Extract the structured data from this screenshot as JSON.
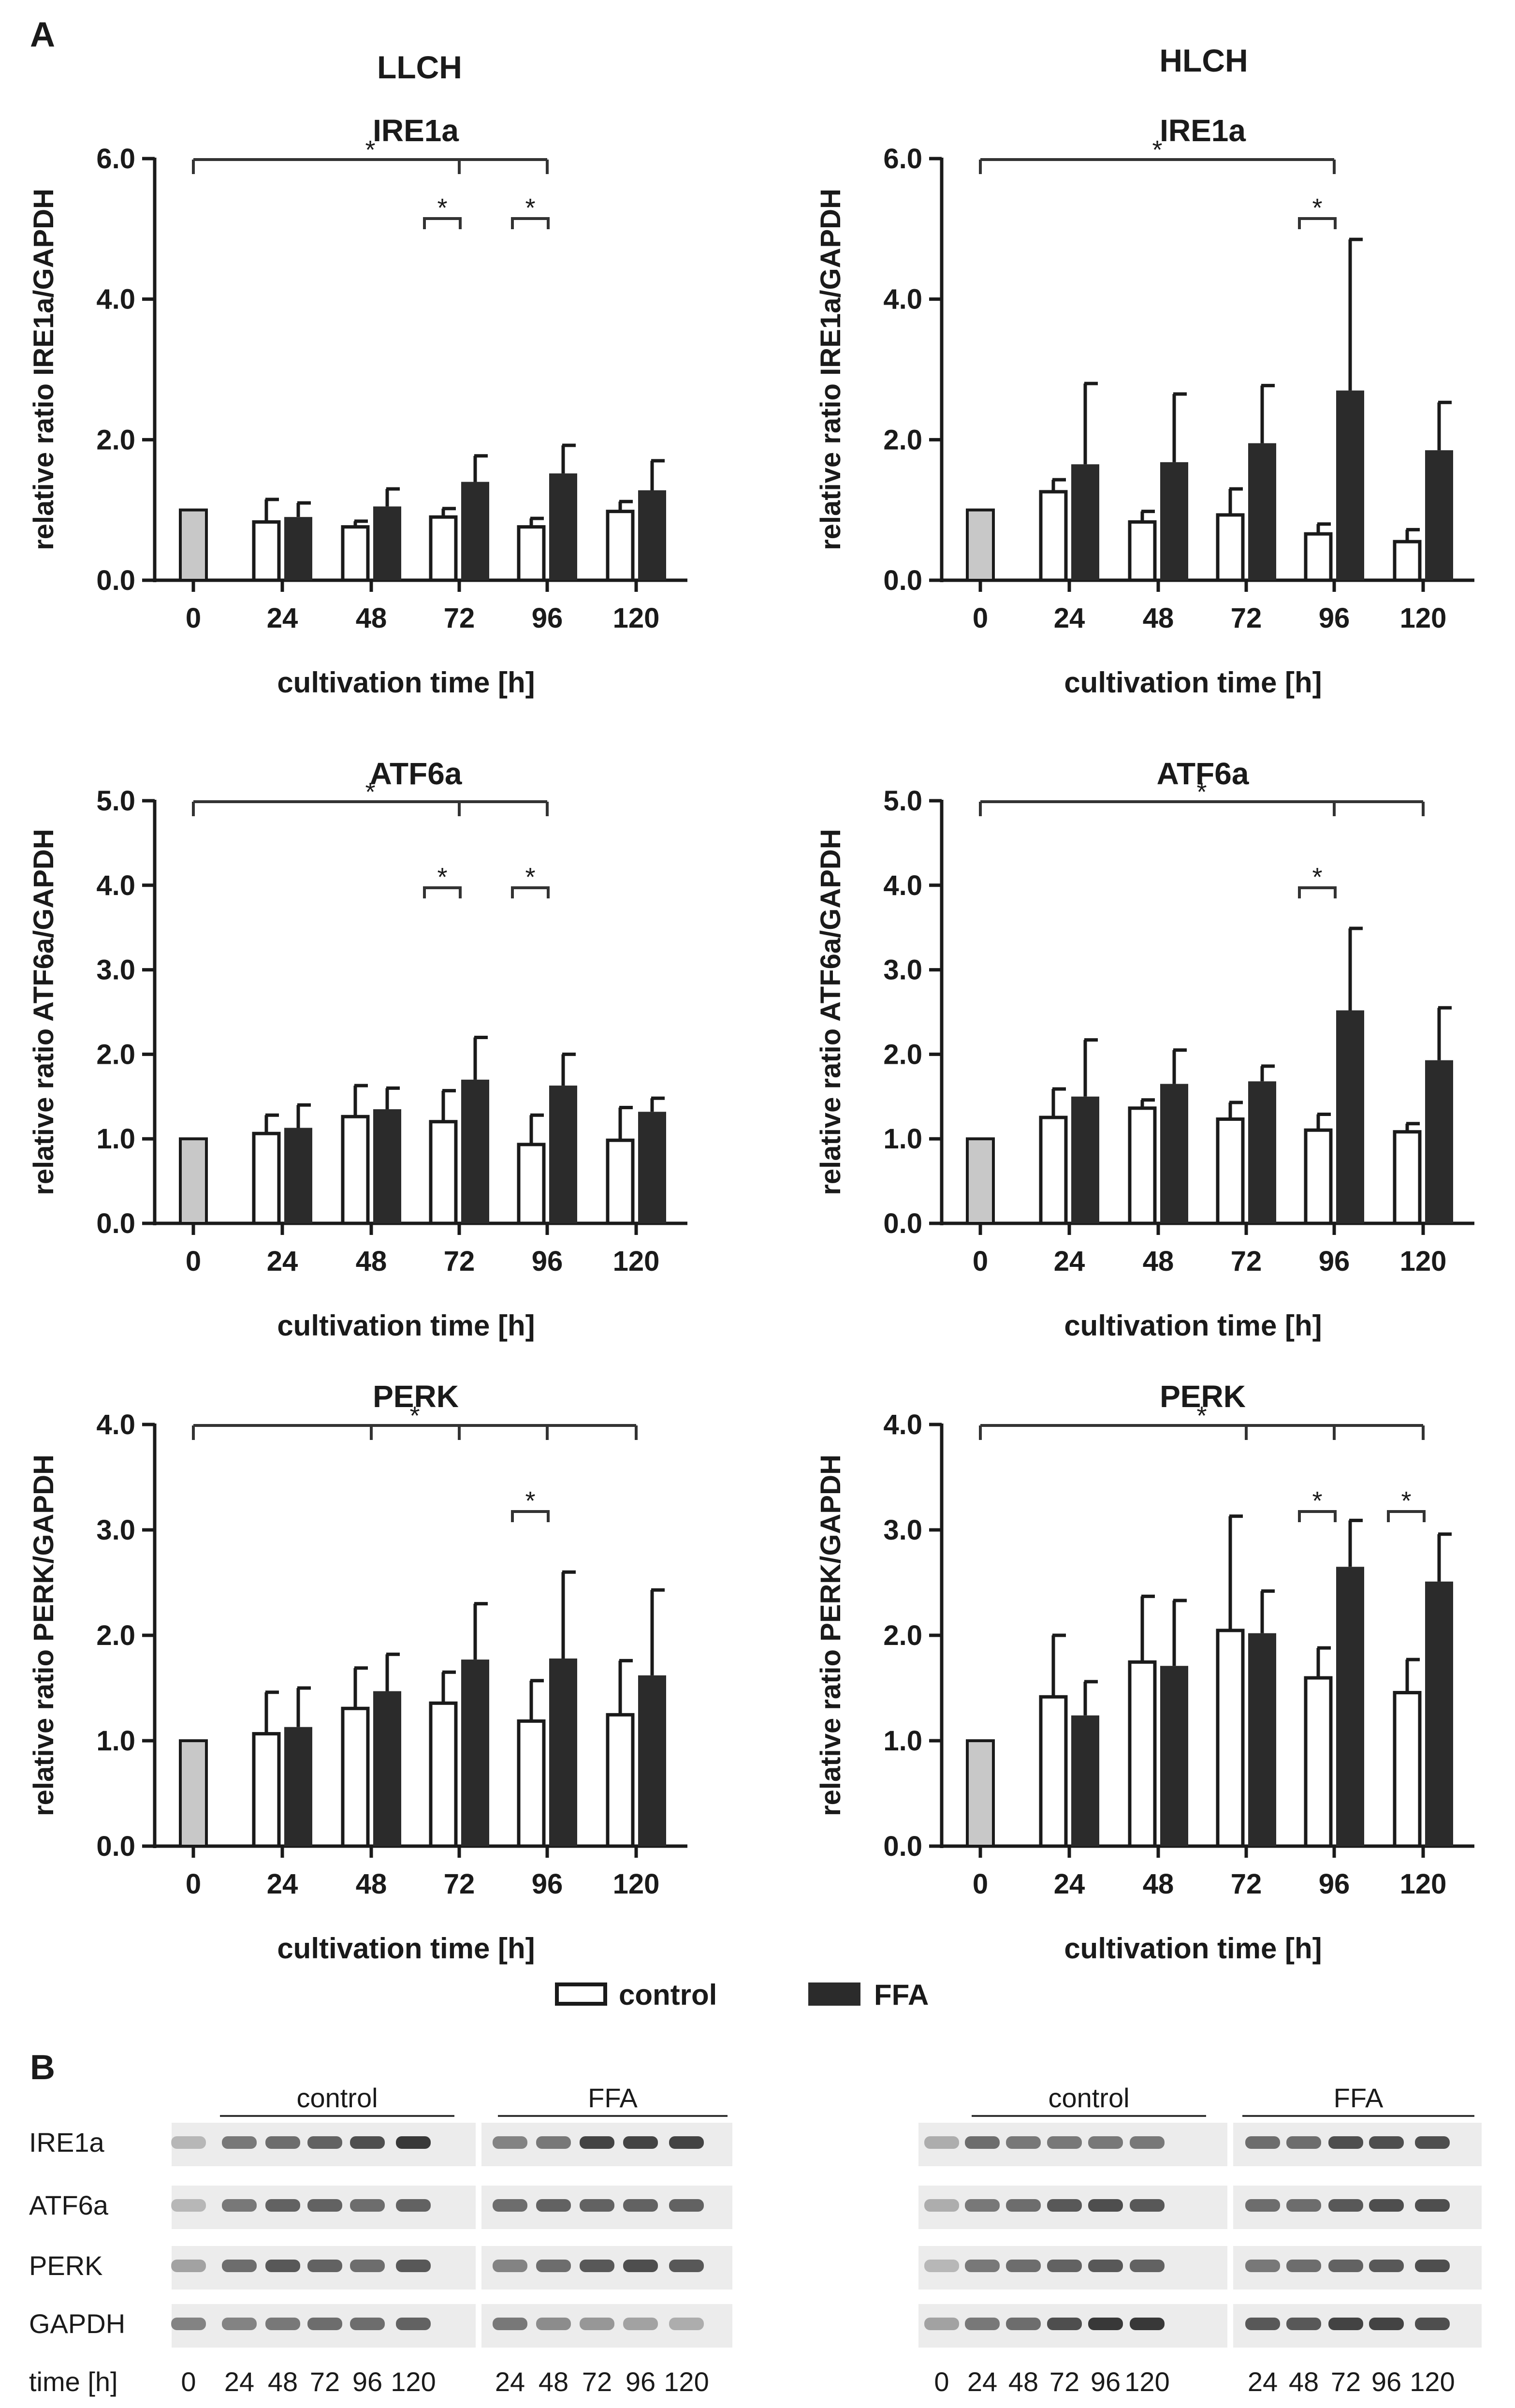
{
  "panel_labels": {
    "a": "A",
    "b": "B"
  },
  "group_titles": [
    "LLCH",
    "HLCH"
  ],
  "legend": {
    "control": "control",
    "ffa": "FFA"
  },
  "colors": {
    "baseline": "#c8c8c8",
    "control": "#ffffff",
    "ffa": "#2b2b2b",
    "ink": "#1a1a1a"
  },
  "chart_data": [
    {
      "type": "bar",
      "group": "LLCH",
      "title": "IRE1a",
      "xlabel": "cultivation time [h]",
      "ylabel": "relative ratio IRE1a/GAPDH",
      "ylim": [
        0,
        6
      ],
      "yticks": [
        "0.0",
        "2.0",
        "4.0",
        "6.0"
      ],
      "ytick_values": [
        0,
        2,
        4,
        6
      ],
      "categories": [
        "0",
        "24",
        "48",
        "72",
        "96",
        "120"
      ],
      "baseline": {
        "value": 1.0
      },
      "series": [
        {
          "name": "control",
          "values": [
            null,
            0.85,
            0.78,
            0.92,
            0.78,
            1.0
          ],
          "errors": [
            null,
            0.3,
            0.06,
            0.1,
            0.1,
            0.12
          ]
        },
        {
          "name": "FFA",
          "values": [
            null,
            0.9,
            1.05,
            1.4,
            1.52,
            1.28
          ],
          "errors": [
            null,
            0.2,
            0.25,
            0.37,
            0.4,
            0.42
          ]
        }
      ],
      "significance": [
        {
          "type": "overall",
          "from": "0",
          "to": "96",
          "drops": [
            "72",
            "96"
          ],
          "label": "*"
        },
        {
          "type": "pair",
          "at": "72",
          "label": "*"
        },
        {
          "type": "pair",
          "at": "96",
          "label": "*"
        }
      ]
    },
    {
      "type": "bar",
      "group": "HLCH",
      "title": "IRE1a",
      "xlabel": "cultivation time [h]",
      "ylabel": "relative ratio IRE1a/GAPDH",
      "ylim": [
        0,
        6
      ],
      "yticks": [
        "0.0",
        "2.0",
        "4.0",
        "6.0"
      ],
      "ytick_values": [
        0,
        2,
        4,
        6
      ],
      "categories": [
        "0",
        "24",
        "48",
        "72",
        "96",
        "120"
      ],
      "baseline": {
        "value": 1.0
      },
      "series": [
        {
          "name": "control",
          "values": [
            null,
            1.28,
            0.85,
            0.95,
            0.68,
            0.57
          ],
          "errors": [
            null,
            0.15,
            0.13,
            0.35,
            0.12,
            0.15
          ]
        },
        {
          "name": "FFA",
          "values": [
            null,
            1.65,
            1.68,
            1.95,
            2.7,
            1.85
          ],
          "errors": [
            null,
            1.15,
            0.97,
            0.82,
            2.15,
            0.68
          ]
        }
      ],
      "significance": [
        {
          "type": "overall",
          "from": "0",
          "to": "96",
          "drops": [
            "96"
          ],
          "label": "*"
        },
        {
          "type": "pair",
          "at": "96",
          "label": "*"
        }
      ]
    },
    {
      "type": "bar",
      "group": "LLCH",
      "title": "ATF6a",
      "xlabel": "cultivation time [h]",
      "ylabel": "relative ratio ATF6a/GAPDH",
      "ylim": [
        0,
        5
      ],
      "yticks": [
        "0.0",
        "1.0",
        "2.0",
        "3.0",
        "4.0",
        "5.0"
      ],
      "ytick_values": [
        0,
        1,
        2,
        3,
        4,
        5
      ],
      "categories": [
        "0",
        "24",
        "48",
        "72",
        "96",
        "120"
      ],
      "baseline": {
        "value": 1.0
      },
      "series": [
        {
          "name": "control",
          "values": [
            null,
            1.08,
            1.28,
            1.22,
            0.95,
            1.0
          ],
          "errors": [
            null,
            0.2,
            0.35,
            0.35,
            0.33,
            0.37
          ]
        },
        {
          "name": "FFA",
          "values": [
            null,
            1.13,
            1.35,
            1.7,
            1.63,
            1.32
          ],
          "errors": [
            null,
            0.27,
            0.25,
            0.5,
            0.37,
            0.16
          ]
        }
      ],
      "significance": [
        {
          "type": "overall",
          "from": "0",
          "to": "96",
          "drops": [
            "72",
            "96"
          ],
          "label": "*"
        },
        {
          "type": "pair",
          "at": "72",
          "label": "*"
        },
        {
          "type": "pair",
          "at": "96",
          "label": "*"
        }
      ]
    },
    {
      "type": "bar",
      "group": "HLCH",
      "title": "ATF6a",
      "xlabel": "cultivation time [h]",
      "ylabel": "relative ratio ATF6a/GAPDH",
      "ylim": [
        0,
        5
      ],
      "yticks": [
        "0.0",
        "1.0",
        "2.0",
        "3.0",
        "4.0",
        "5.0"
      ],
      "ytick_values": [
        0,
        1,
        2,
        3,
        4,
        5
      ],
      "categories": [
        "0",
        "24",
        "48",
        "72",
        "96",
        "120"
      ],
      "baseline": {
        "value": 1.0
      },
      "series": [
        {
          "name": "control",
          "values": [
            null,
            1.27,
            1.38,
            1.25,
            1.12,
            1.1
          ],
          "errors": [
            null,
            0.32,
            0.08,
            0.18,
            0.17,
            0.08
          ]
        },
        {
          "name": "FFA",
          "values": [
            null,
            1.5,
            1.65,
            1.68,
            2.52,
            1.93
          ],
          "errors": [
            null,
            0.67,
            0.4,
            0.18,
            0.97,
            0.62
          ]
        }
      ],
      "significance": [
        {
          "type": "overall",
          "from": "0",
          "to": "120",
          "drops": [
            "96",
            "120"
          ],
          "label": "*"
        },
        {
          "type": "pair",
          "at": "96",
          "label": "*"
        }
      ]
    },
    {
      "type": "bar",
      "group": "LLCH",
      "title": "PERK",
      "xlabel": "cultivation time [h]",
      "ylabel": "relative ratio PERK/GAPDH",
      "ylim": [
        0,
        4
      ],
      "yticks": [
        "0.0",
        "1.0",
        "2.0",
        "3.0",
        "4.0"
      ],
      "ytick_values": [
        0,
        1,
        2,
        3,
        4
      ],
      "categories": [
        "0",
        "24",
        "48",
        "72",
        "96",
        "120"
      ],
      "baseline": {
        "value": 1.0
      },
      "series": [
        {
          "name": "control",
          "values": [
            null,
            1.08,
            1.32,
            1.37,
            1.2,
            1.26
          ],
          "errors": [
            null,
            0.38,
            0.37,
            0.28,
            0.37,
            0.5
          ]
        },
        {
          "name": "FFA",
          "values": [
            null,
            1.13,
            1.47,
            1.77,
            1.78,
            1.62
          ],
          "errors": [
            null,
            0.37,
            0.35,
            0.53,
            0.82,
            0.81
          ]
        }
      ],
      "significance": [
        {
          "type": "overall",
          "from": "0",
          "to": "120",
          "drops": [
            "48",
            "72",
            "96",
            "120"
          ],
          "label": "*"
        },
        {
          "type": "pair",
          "at": "96",
          "label": "*"
        }
      ]
    },
    {
      "type": "bar",
      "group": "HLCH",
      "title": "PERK",
      "xlabel": "cultivation time [h]",
      "ylabel": "relative ratio PERK/GAPDH",
      "ylim": [
        0,
        4
      ],
      "yticks": [
        "0.0",
        "1.0",
        "2.0",
        "3.0",
        "4.0"
      ],
      "ytick_values": [
        0,
        1,
        2,
        3,
        4
      ],
      "categories": [
        "0",
        "24",
        "48",
        "72",
        "96",
        "120"
      ],
      "baseline": {
        "value": 1.0
      },
      "series": [
        {
          "name": "control",
          "values": [
            null,
            1.43,
            1.76,
            2.06,
            1.61,
            1.47
          ],
          "errors": [
            null,
            0.57,
            0.61,
            1.07,
            0.27,
            0.3
          ]
        },
        {
          "name": "FFA",
          "values": [
            null,
            1.24,
            1.71,
            2.02,
            2.65,
            2.51
          ],
          "errors": [
            null,
            0.32,
            0.62,
            0.4,
            0.44,
            0.45
          ]
        }
      ],
      "significance": [
        {
          "type": "overall",
          "from": "0",
          "to": "120",
          "drops": [
            "72",
            "96",
            "120"
          ],
          "label": "*"
        },
        {
          "type": "pair",
          "at": "96",
          "label": "*"
        },
        {
          "type": "pair",
          "at": "120",
          "label": "*"
        }
      ]
    }
  ],
  "western_blot": {
    "group_labels": {
      "control": "control",
      "ffa": "FFA"
    },
    "row_labels": [
      "IRE1a",
      "ATF6a",
      "PERK",
      "GAPDH"
    ],
    "time_label": "time [h]",
    "left_lanes": [
      "0",
      "24",
      "48",
      "72",
      "96",
      "120",
      "24",
      "48",
      "72",
      "96",
      "120"
    ],
    "right_lanes": [
      "0",
      "24",
      "48",
      "72",
      "96",
      "120",
      "24",
      "48",
      "72",
      "96",
      "120"
    ],
    "band_intensity": {
      "left": [
        [
          0.25,
          0.55,
          0.6,
          0.65,
          0.75,
          0.85,
          0.5,
          0.55,
          0.8,
          0.8,
          0.8
        ],
        [
          0.25,
          0.55,
          0.65,
          0.65,
          0.6,
          0.65,
          0.6,
          0.65,
          0.65,
          0.65,
          0.65
        ],
        [
          0.35,
          0.6,
          0.7,
          0.65,
          0.6,
          0.7,
          0.5,
          0.6,
          0.7,
          0.75,
          0.7
        ],
        [
          0.5,
          0.5,
          0.55,
          0.6,
          0.6,
          0.65,
          0.55,
          0.45,
          0.4,
          0.35,
          0.3
        ]
      ],
      "right": [
        [
          0.3,
          0.6,
          0.55,
          0.55,
          0.55,
          0.55,
          0.6,
          0.6,
          0.75,
          0.75,
          0.75
        ],
        [
          0.3,
          0.55,
          0.6,
          0.7,
          0.75,
          0.7,
          0.6,
          0.6,
          0.7,
          0.75,
          0.75
        ],
        [
          0.25,
          0.55,
          0.6,
          0.65,
          0.7,
          0.65,
          0.55,
          0.6,
          0.65,
          0.7,
          0.75
        ],
        [
          0.35,
          0.55,
          0.6,
          0.75,
          0.85,
          0.85,
          0.7,
          0.7,
          0.8,
          0.8,
          0.75
        ]
      ]
    }
  }
}
